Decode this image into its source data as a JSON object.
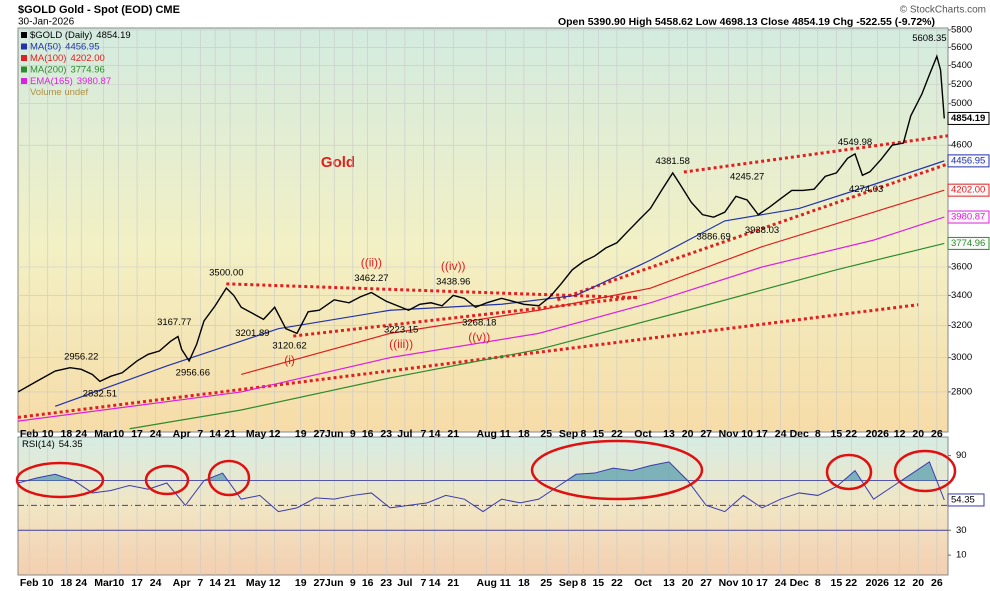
{
  "chart_data": {
    "type": "line",
    "title": "$GOLD Gold - Spot (EOD) CME",
    "date": "30-Jan-2026",
    "quote": "Open 5390.90  High 5458.62  Low 4698.13  Close 4854.19  Chg -522.55 (-9.72%)",
    "credit": "© StockCharts.com",
    "label": "Gold",
    "volume_legend": "Volume undef",
    "log_scale": true,
    "grid": true,
    "xlim": [
      0,
      250
    ],
    "xticks": [
      {
        "value": 3,
        "label": "Feb"
      },
      {
        "value": 8,
        "label": "10"
      },
      {
        "value": 13,
        "label": "18"
      },
      {
        "value": 17,
        "label": "24"
      },
      {
        "value": 23,
        "label": "Mar"
      },
      {
        "value": 27,
        "label": "10"
      },
      {
        "value": 32,
        "label": "17"
      },
      {
        "value": 37,
        "label": "24"
      },
      {
        "value": 44,
        "label": "Apr"
      },
      {
        "value": 49,
        "label": "7"
      },
      {
        "value": 53,
        "label": "14"
      },
      {
        "value": 57,
        "label": "21"
      },
      {
        "value": 64,
        "label": "May"
      },
      {
        "value": 69,
        "label": "12"
      },
      {
        "value": 76,
        "label": "19"
      },
      {
        "value": 81,
        "label": "27"
      },
      {
        "value": 85,
        "label": "Jun"
      },
      {
        "value": 90,
        "label": "9"
      },
      {
        "value": 94,
        "label": "16"
      },
      {
        "value": 99,
        "label": "23"
      },
      {
        "value": 104,
        "label": "Jul"
      },
      {
        "value": 109,
        "label": "7"
      },
      {
        "value": 112,
        "label": "14"
      },
      {
        "value": 117,
        "label": "21"
      },
      {
        "value": 126,
        "label": "Aug"
      },
      {
        "value": 131,
        "label": "11"
      },
      {
        "value": 136,
        "label": "18"
      },
      {
        "value": 142,
        "label": "25"
      },
      {
        "value": 148,
        "label": "Sep"
      },
      {
        "value": 152,
        "label": "8"
      },
      {
        "value": 156,
        "label": "15"
      },
      {
        "value": 161,
        "label": "22"
      },
      {
        "value": 168,
        "label": "Oct"
      },
      {
        "value": 175,
        "label": "13"
      },
      {
        "value": 180,
        "label": "20"
      },
      {
        "value": 185,
        "label": "27"
      },
      {
        "value": 191,
        "label": "Nov"
      },
      {
        "value": 196,
        "label": "10"
      },
      {
        "value": 200,
        "label": "17"
      },
      {
        "value": 205,
        "label": "24"
      },
      {
        "value": 210,
        "label": "Dec"
      },
      {
        "value": 215,
        "label": "8"
      },
      {
        "value": 220,
        "label": "15"
      },
      {
        "value": 224,
        "label": "22"
      },
      {
        "value": 231,
        "label": "2026"
      },
      {
        "value": 237,
        "label": "12"
      },
      {
        "value": 242,
        "label": "20"
      },
      {
        "value": 247,
        "label": "26"
      }
    ],
    "ylim": [
      2583,
      5823
    ],
    "yticks": [
      2800,
      3000,
      3200,
      3400,
      3600,
      4600,
      5000,
      5200,
      5400,
      5600,
      5800
    ],
    "series": [
      {
        "name": "$GOLD (Daily)",
        "color": "#000000",
        "last_label": "4854.19",
        "x": [
          0,
          5,
          10,
          14,
          17,
          20,
          22,
          25,
          28,
          32,
          35,
          38,
          41,
          43,
          44,
          46,
          48,
          50,
          53,
          56,
          58,
          60,
          63,
          66,
          69,
          72,
          75,
          78,
          81,
          85,
          89,
          92,
          95,
          99,
          102,
          105,
          108,
          111,
          114,
          117,
          120,
          123,
          126,
          130,
          133,
          136,
          140,
          143,
          146,
          149,
          152,
          155,
          158,
          161,
          164,
          167,
          170,
          173,
          176,
          178,
          181,
          184,
          187,
          190,
          193,
          196,
          199,
          202,
          205,
          208,
          211,
          214,
          217,
          220,
          223,
          225,
          227,
          229,
          232,
          235,
          238,
          240,
          243,
          245,
          247,
          248,
          249
        ],
        "values": [
          2800,
          2860,
          2920,
          2940,
          2930,
          2900,
          2860,
          2890,
          2910,
          2980,
          3020,
          3040,
          3100,
          3130,
          3050,
          2980,
          3080,
          3230,
          3330,
          3450,
          3400,
          3320,
          3280,
          3240,
          3320,
          3180,
          3150,
          3290,
          3300,
          3370,
          3350,
          3390,
          3420,
          3360,
          3330,
          3300,
          3340,
          3350,
          3330,
          3400,
          3380,
          3320,
          3350,
          3380,
          3360,
          3340,
          3330,
          3390,
          3480,
          3580,
          3640,
          3680,
          3740,
          3780,
          3870,
          3960,
          4050,
          4200,
          4350,
          4250,
          4100,
          4000,
          3980,
          4020,
          4150,
          4120,
          4000,
          4060,
          4130,
          4200,
          4200,
          4210,
          4320,
          4350,
          4480,
          4520,
          4330,
          4360,
          4470,
          4600,
          4620,
          4880,
          5100,
          5300,
          5500,
          5350,
          4854.19
        ]
      },
      {
        "name": "MA(50)",
        "color": "#2233aa",
        "last_label": "4456.95",
        "x": [
          10,
          40,
          70,
          100,
          130,
          150,
          170,
          190,
          210,
          230,
          249
        ],
        "values": [
          2720,
          2950,
          3180,
          3300,
          3340,
          3400,
          3650,
          3950,
          4050,
          4250,
          4456.95
        ]
      },
      {
        "name": "MA(100)",
        "color": "#e02020",
        "last_label": "4202.00",
        "x": [
          60,
          100,
          140,
          170,
          200,
          230,
          249
        ],
        "values": [
          2900,
          3150,
          3300,
          3450,
          3750,
          4020,
          4202.0
        ]
      },
      {
        "name": "MA(200)",
        "color": "#2e8b2e",
        "last_label": "3774.96",
        "x": [
          30,
          60,
          100,
          140,
          180,
          220,
          249
        ],
        "values": [
          2600,
          2700,
          2880,
          3050,
          3300,
          3580,
          3774.96
        ]
      },
      {
        "name": "EMA(165)",
        "color": "#e020e0",
        "last_label": "3980.87",
        "x": [
          0,
          60,
          100,
          140,
          170,
          200,
          230,
          249
        ],
        "values": [
          2640,
          2800,
          3000,
          3150,
          3350,
          3600,
          3800,
          3980.87
        ]
      }
    ],
    "peaks": [
      {
        "x": 17,
        "value": 2956.22,
        "label": "2956.22"
      },
      {
        "x": 42,
        "value": 3167.77,
        "label": "3167.77"
      },
      {
        "x": 56,
        "value": 3500,
        "label": "3500.00"
      },
      {
        "x": 95,
        "value": 3462.27,
        "label": "3462.27",
        "wave": "((ii))"
      },
      {
        "x": 117,
        "value": 3438.96,
        "label": "3438.96",
        "wave": "((iv))"
      },
      {
        "x": 176,
        "value": 4381.58,
        "label": "4381.58"
      },
      {
        "x": 196,
        "value": 4245.27,
        "label": "4245.27"
      },
      {
        "x": 225,
        "value": 4549.98,
        "label": "4549.98"
      },
      {
        "x": 245,
        "value": 5608.35,
        "label": "5608.35"
      }
    ],
    "lows": [
      {
        "x": 22,
        "value": 2832.51,
        "label": "2832.51"
      },
      {
        "x": 47,
        "value": 2956.66,
        "label": "2956.66"
      },
      {
        "x": 63,
        "value": 3201.89,
        "label": "3201.89"
      },
      {
        "x": 73,
        "value": 3120.62,
        "label": "3120.62",
        "wave": "(i)"
      },
      {
        "x": 103,
        "value": 3223.15,
        "label": "3223.15",
        "wave": "((iii))"
      },
      {
        "x": 124,
        "value": 3268.18,
        "label": "3268.18",
        "wave": "((v))"
      },
      {
        "x": 187,
        "value": 3886.69,
        "label": "3886.69"
      },
      {
        "x": 200,
        "value": 3938.03,
        "label": "3938.03"
      },
      {
        "x": 228,
        "value": 4274.03,
        "label": "4274.03"
      }
    ],
    "trendline_color": "#e02020",
    "trendlines": [
      {
        "x": [
          0,
          242
        ],
        "values": [
          2660,
          3337
        ]
      },
      {
        "x": [
          56,
          167
        ],
        "values": [
          3480,
          3384
        ]
      },
      {
        "x": [
          74,
          167
        ],
        "values": [
          3133,
          3390
        ]
      },
      {
        "x": [
          145,
          250
        ],
        "values": [
          3370,
          4430
        ]
      },
      {
        "x": [
          179,
          250
        ],
        "values": [
          4358,
          4688
        ]
      }
    ],
    "rsi": {
      "name": "RSI(14)",
      "color": "#3a3ab0",
      "fill": "#5b9fb0",
      "last_label": "54.35",
      "ylim": [
        -6,
        105
      ],
      "yticks": [
        10,
        30,
        90
      ],
      "levels": [
        70,
        50,
        30
      ],
      "x": [
        0,
        5,
        10,
        15,
        20,
        25,
        30,
        35,
        40,
        45,
        50,
        55,
        60,
        65,
        70,
        75,
        80,
        85,
        90,
        95,
        100,
        105,
        110,
        115,
        120,
        125,
        130,
        135,
        140,
        145,
        150,
        155,
        160,
        165,
        170,
        175,
        180,
        185,
        190,
        195,
        200,
        205,
        210,
        215,
        220,
        225,
        230,
        235,
        240,
        245,
        249
      ],
      "values": [
        68,
        72,
        75,
        70,
        60,
        62,
        66,
        63,
        68,
        50,
        70,
        76,
        55,
        58,
        45,
        48,
        56,
        55,
        58,
        60,
        48,
        50,
        52,
        58,
        55,
        45,
        55,
        52,
        55,
        65,
        75,
        76,
        80,
        78,
        82,
        85,
        70,
        50,
        45,
        58,
        48,
        55,
        60,
        58,
        65,
        78,
        55,
        65,
        75,
        85,
        54.35
      ]
    }
  }
}
